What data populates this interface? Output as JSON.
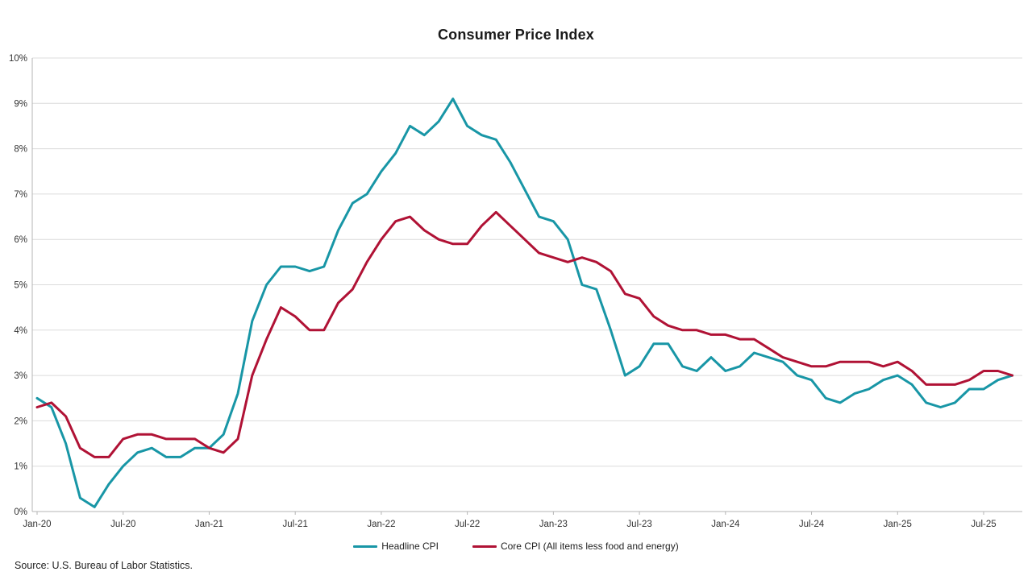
{
  "source": "Source: U.S. Bureau of Labor Statistics.",
  "chart_data": {
    "type": "line",
    "title": "Consumer Price Index",
    "xlabel": "",
    "ylabel": "",
    "ylim": [
      0,
      10
    ],
    "y_tick_labels": [
      "0%",
      "1%",
      "2%",
      "3%",
      "4%",
      "5%",
      "6%",
      "7%",
      "8%",
      "9%",
      "10%"
    ],
    "grid": "horizontal",
    "legend_position": "bottom-center",
    "x_frequency": "monthly",
    "x_start": "Jan-20",
    "x_end": "Sep-25",
    "n_points": 69,
    "x_tick_indices": [
      0,
      6,
      12,
      18,
      24,
      30,
      36,
      42,
      48,
      54,
      60,
      66
    ],
    "x_tick_labels": [
      "Jan-20",
      "Jul-20",
      "Jan-21",
      "Jul-21",
      "Jan-22",
      "Jul-22",
      "Jan-23",
      "Jul-23",
      "Jan-24",
      "Jul-24",
      "Jan-25",
      "Jul-25"
    ],
    "series": [
      {
        "name": "Headline CPI",
        "color": "#1896A6",
        "values": [
          2.5,
          2.3,
          1.5,
          0.3,
          0.1,
          0.6,
          1.0,
          1.3,
          1.4,
          1.2,
          1.2,
          1.4,
          1.4,
          1.7,
          2.6,
          4.2,
          5.0,
          5.4,
          5.4,
          5.3,
          5.4,
          6.2,
          6.8,
          7.0,
          7.5,
          7.9,
          8.5,
          8.3,
          8.6,
          9.1,
          8.5,
          8.3,
          8.2,
          7.7,
          7.1,
          6.5,
          6.4,
          6.0,
          5.0,
          4.9,
          4.0,
          3.0,
          3.2,
          3.7,
          3.7,
          3.2,
          3.1,
          3.4,
          3.1,
          3.2,
          3.5,
          3.4,
          3.3,
          3.0,
          2.9,
          2.5,
          2.4,
          2.6,
          2.7,
          2.9,
          3.0,
          2.8,
          2.4,
          2.3,
          2.4,
          2.7,
          2.7,
          2.9,
          3.0
        ]
      },
      {
        "name": "Core CPI (All items less food and energy)",
        "color": "#B01235",
        "values": [
          2.3,
          2.4,
          2.1,
          1.4,
          1.2,
          1.2,
          1.6,
          1.7,
          1.7,
          1.6,
          1.6,
          1.6,
          1.4,
          1.3,
          1.6,
          3.0,
          3.8,
          4.5,
          4.3,
          4.0,
          4.0,
          4.6,
          4.9,
          5.5,
          6.0,
          6.4,
          6.5,
          6.2,
          6.0,
          5.9,
          5.9,
          6.3,
          6.6,
          6.3,
          6.0,
          5.7,
          5.6,
          5.5,
          5.6,
          5.5,
          5.3,
          4.8,
          4.7,
          4.3,
          4.1,
          4.0,
          4.0,
          3.9,
          3.9,
          3.8,
          3.8,
          3.6,
          3.4,
          3.3,
          3.2,
          3.2,
          3.3,
          3.3,
          3.3,
          3.2,
          3.3,
          3.1,
          2.8,
          2.8,
          2.8,
          2.9,
          3.1,
          3.1,
          3.0
        ]
      }
    ],
    "style": {
      "grid_color": "#dcdcdc",
      "axis_color": "#b5b5b5",
      "line_width": 3
    }
  }
}
